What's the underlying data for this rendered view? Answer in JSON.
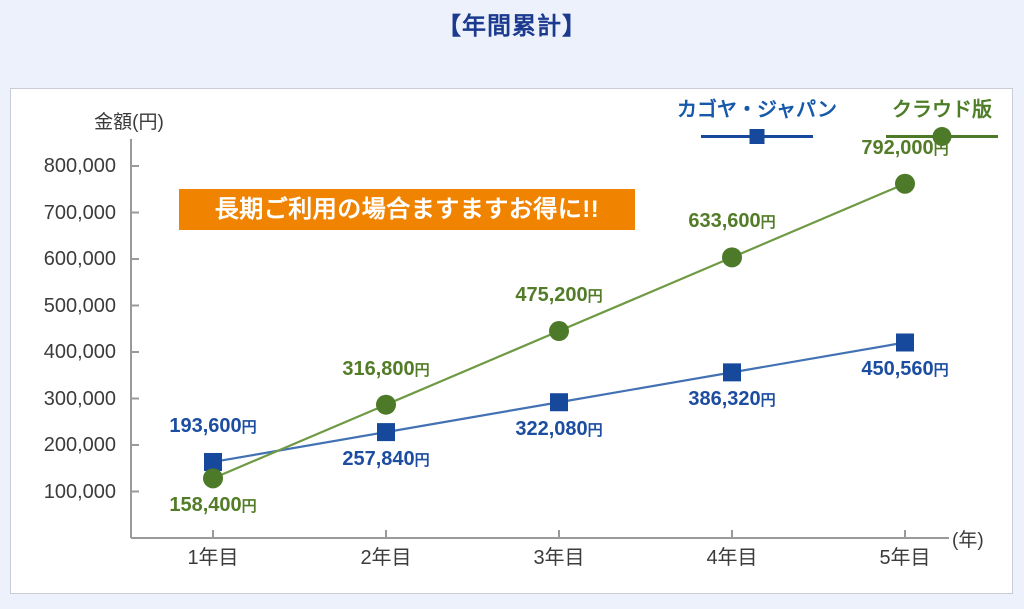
{
  "title_color": "#1b3a8e",
  "banner": {
    "text": "長期ご利用の場合ますますお得に!!",
    "background": "#f08300",
    "text_color": "#ffffff"
  },
  "chart_data": {
    "type": "line",
    "title": "【年間累計】",
    "ylabel": "金額(円)",
    "xlabel": "(年)",
    "categories": [
      "1年目",
      "2年目",
      "3年目",
      "4年目",
      "5年目"
    ],
    "ylim": [
      0,
      860000
    ],
    "grid": false,
    "legend_position": "top-right",
    "y_axis": {
      "tick_values": [
        800000,
        700000,
        600000,
        500000,
        400000,
        300000,
        200000,
        100000
      ],
      "tick_labels": [
        "800,000",
        "700,000",
        "600,000",
        "500,000",
        "400,000",
        "300,000",
        "200,000",
        "100,000"
      ]
    },
    "axis_color": "#9a9a9a",
    "series": [
      {
        "name": "カゴヤ・ジャパン",
        "marker": "square",
        "marker_color": "#16489c",
        "line_color": "#4272b4",
        "label_color": "#1c4da0",
        "legend_text_color": "#1658a9",
        "values": [
          193600,
          257840,
          322080,
          386320,
          450560
        ],
        "point_labels": [
          "193,600円",
          "257,840円",
          "322,080円",
          "386,320円",
          "450,560円"
        ],
        "label_side": [
          "above",
          "below",
          "below",
          "below",
          "below"
        ]
      },
      {
        "name": "クラウド版",
        "marker": "circle",
        "marker_color": "#4d7a28",
        "line_color": "#6f9a44",
        "label_color": "#527c27",
        "legend_text_color": "#4d7d27",
        "values": [
          158400,
          316800,
          475200,
          633600,
          792000
        ],
        "point_labels": [
          "158,400円",
          "316,800円",
          "475,200円",
          "633,600円",
          "792,000円"
        ],
        "label_side": [
          "below",
          "above",
          "above",
          "above",
          "above"
        ]
      }
    ]
  }
}
